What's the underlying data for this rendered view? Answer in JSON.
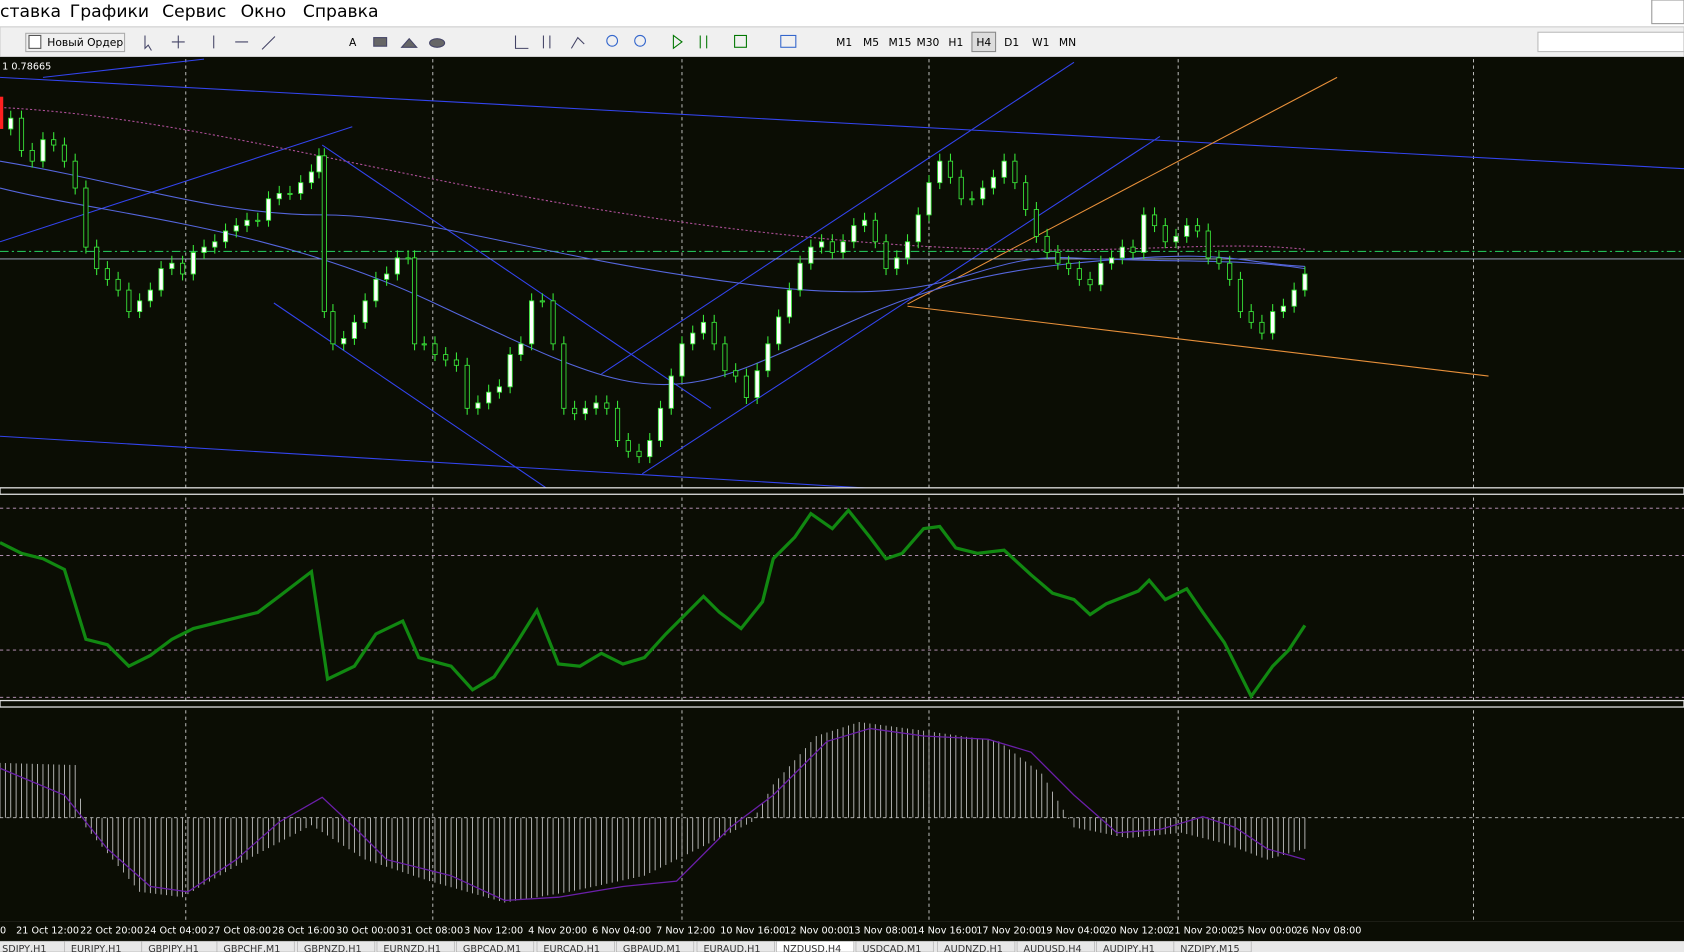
{
  "menu": [
    "ставка",
    "Графики",
    "Сервис",
    "Окно",
    "Справка"
  ],
  "toolbar": {
    "new_order": "Новый Ордер",
    "text_tool": "A",
    "timeframes": [
      "M1",
      "M5",
      "M15",
      "M30",
      "H1",
      "H4",
      "D1",
      "W1",
      "MN"
    ]
  },
  "chart": {
    "price_label": "1 0.78665",
    "dates": [
      "0",
      "21 Oct 12:00",
      "22 Oct 20:00",
      "24 Oct 04:00",
      "27 Oct 08:00",
      "28 Oct 16:00",
      "30 Oct 00:00",
      "31 Oct 08:00",
      "3 Nov 12:00",
      "4 Nov 20:00",
      "6 Nov 04:00",
      "7 Nov 12:00",
      "10 Nov 16:00",
      "12 Nov 00:00",
      "13 Nov 08:00",
      "14 Nov 16:00",
      "17 Nov 20:00",
      "19 Nov 04:00",
      "20 Nov 12:00",
      "21 Nov 20:00",
      "25 Nov 00:00",
      "26 Nov 08:00"
    ]
  },
  "tabs": [
    "SDJPY,H1",
    "EURJPY,H1",
    "GBPJPY,H1",
    "GBPCHF,M1",
    "GBPNZD,H1",
    "EURNZD,H1",
    "GBPCAD,M1",
    "EURCAD,H1",
    "GBPAUD,M1",
    "EURAUD,H1",
    "NZDUSD,H4",
    "USDCAD,M1",
    "AUDNZD,H1",
    "AUDUSD,H4",
    "AUDJPY,H1",
    "NZDJPY,M15"
  ]
}
